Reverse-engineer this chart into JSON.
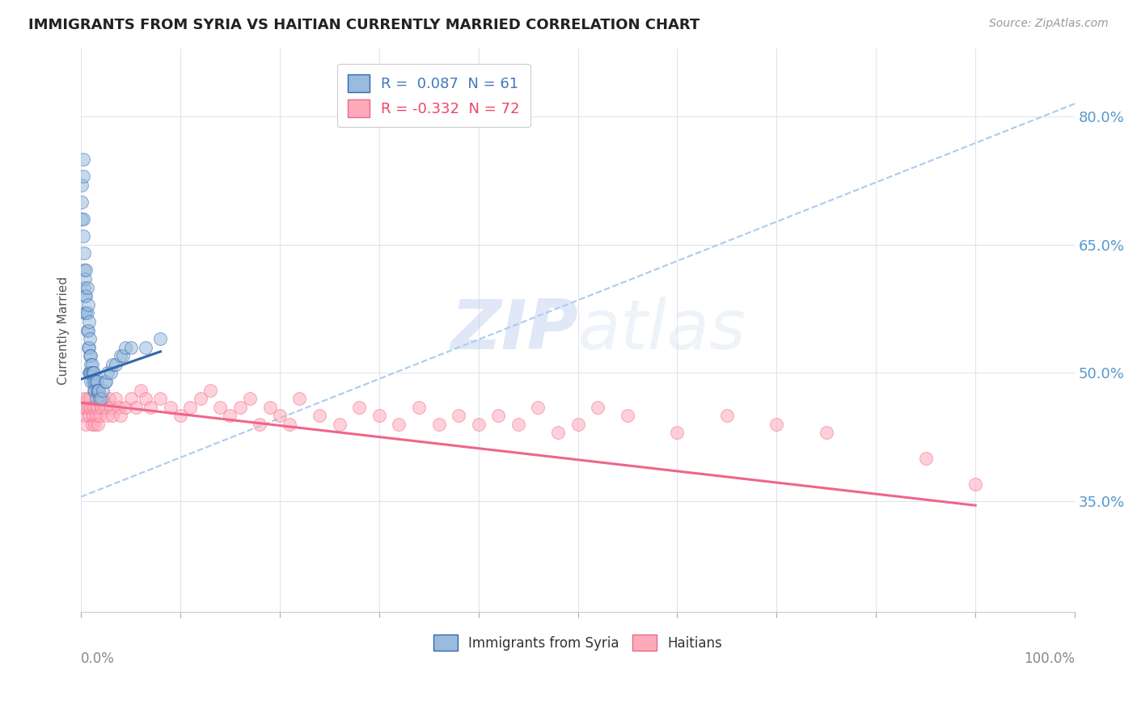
{
  "title": "IMMIGRANTS FROM SYRIA VS HAITIAN CURRENTLY MARRIED CORRELATION CHART",
  "source": "Source: ZipAtlas.com",
  "ylabel": "Currently Married",
  "ytick_labels": [
    "35.0%",
    "50.0%",
    "65.0%",
    "80.0%"
  ],
  "ytick_values": [
    0.35,
    0.5,
    0.65,
    0.8
  ],
  "xlim": [
    0.0,
    1.0
  ],
  "ylim": [
    0.22,
    0.88
  ],
  "legend_blue_text": "R =  0.087  N = 61",
  "legend_pink_text": "R = -0.332  N = 72",
  "legend_label_blue": "Immigrants from Syria",
  "legend_label_pink": "Haitians",
  "blue_color": "#99BBDD",
  "pink_color": "#FFAABB",
  "blue_line_color": "#3366AA",
  "pink_line_color": "#EE6688",
  "dashed_line_color": "#AACCEE",
  "watermark_zip": "ZIP",
  "watermark_atlas": "atlas",
  "background_color": "#FFFFFF",
  "syria_x": [
    0.001,
    0.001,
    0.001,
    0.002,
    0.002,
    0.002,
    0.002,
    0.003,
    0.003,
    0.003,
    0.004,
    0.004,
    0.004,
    0.005,
    0.005,
    0.005,
    0.006,
    0.006,
    0.006,
    0.007,
    0.007,
    0.007,
    0.008,
    0.008,
    0.008,
    0.009,
    0.009,
    0.009,
    0.01,
    0.01,
    0.01,
    0.01,
    0.011,
    0.011,
    0.012,
    0.012,
    0.013,
    0.013,
    0.014,
    0.014,
    0.015,
    0.015,
    0.016,
    0.016,
    0.017,
    0.018,
    0.019,
    0.02,
    0.022,
    0.024,
    0.025,
    0.027,
    0.03,
    0.032,
    0.035,
    0.04,
    0.042,
    0.045,
    0.05,
    0.065,
    0.08
  ],
  "syria_y": [
    0.72,
    0.7,
    0.68,
    0.75,
    0.73,
    0.68,
    0.66,
    0.64,
    0.62,
    0.6,
    0.61,
    0.59,
    0.57,
    0.62,
    0.59,
    0.57,
    0.6,
    0.57,
    0.55,
    0.58,
    0.55,
    0.53,
    0.56,
    0.53,
    0.5,
    0.54,
    0.52,
    0.5,
    0.52,
    0.51,
    0.5,
    0.49,
    0.51,
    0.5,
    0.5,
    0.49,
    0.5,
    0.48,
    0.49,
    0.48,
    0.49,
    0.47,
    0.49,
    0.48,
    0.48,
    0.48,
    0.47,
    0.47,
    0.48,
    0.49,
    0.49,
    0.5,
    0.5,
    0.51,
    0.51,
    0.52,
    0.52,
    0.53,
    0.53,
    0.53,
    0.54
  ],
  "haiti_x": [
    0.001,
    0.002,
    0.003,
    0.004,
    0.005,
    0.006,
    0.007,
    0.008,
    0.009,
    0.01,
    0.011,
    0.012,
    0.013,
    0.014,
    0.015,
    0.016,
    0.017,
    0.018,
    0.019,
    0.02,
    0.022,
    0.024,
    0.026,
    0.028,
    0.03,
    0.032,
    0.035,
    0.038,
    0.04,
    0.045,
    0.05,
    0.055,
    0.06,
    0.065,
    0.07,
    0.08,
    0.09,
    0.1,
    0.11,
    0.12,
    0.13,
    0.14,
    0.15,
    0.16,
    0.17,
    0.18,
    0.19,
    0.2,
    0.21,
    0.22,
    0.24,
    0.26,
    0.28,
    0.3,
    0.32,
    0.34,
    0.36,
    0.38,
    0.4,
    0.42,
    0.44,
    0.46,
    0.48,
    0.5,
    0.52,
    0.55,
    0.6,
    0.65,
    0.7,
    0.75,
    0.85,
    0.9
  ],
  "haiti_y": [
    0.46,
    0.47,
    0.45,
    0.46,
    0.44,
    0.47,
    0.46,
    0.45,
    0.47,
    0.46,
    0.44,
    0.45,
    0.46,
    0.44,
    0.45,
    0.46,
    0.44,
    0.47,
    0.45,
    0.46,
    0.47,
    0.46,
    0.45,
    0.47,
    0.46,
    0.45,
    0.47,
    0.46,
    0.45,
    0.46,
    0.47,
    0.46,
    0.48,
    0.47,
    0.46,
    0.47,
    0.46,
    0.45,
    0.46,
    0.47,
    0.48,
    0.46,
    0.45,
    0.46,
    0.47,
    0.44,
    0.46,
    0.45,
    0.44,
    0.47,
    0.45,
    0.44,
    0.46,
    0.45,
    0.44,
    0.46,
    0.44,
    0.45,
    0.44,
    0.45,
    0.44,
    0.46,
    0.43,
    0.44,
    0.46,
    0.45,
    0.43,
    0.45,
    0.44,
    0.43,
    0.4,
    0.37
  ],
  "blue_line_x": [
    0.001,
    0.08
  ],
  "blue_line_y": [
    0.493,
    0.525
  ],
  "pink_line_x": [
    0.001,
    0.9
  ],
  "pink_line_y": [
    0.465,
    0.345
  ],
  "dashed_line_x": [
    0.0,
    1.0
  ],
  "dashed_line_y": [
    0.355,
    0.815
  ]
}
